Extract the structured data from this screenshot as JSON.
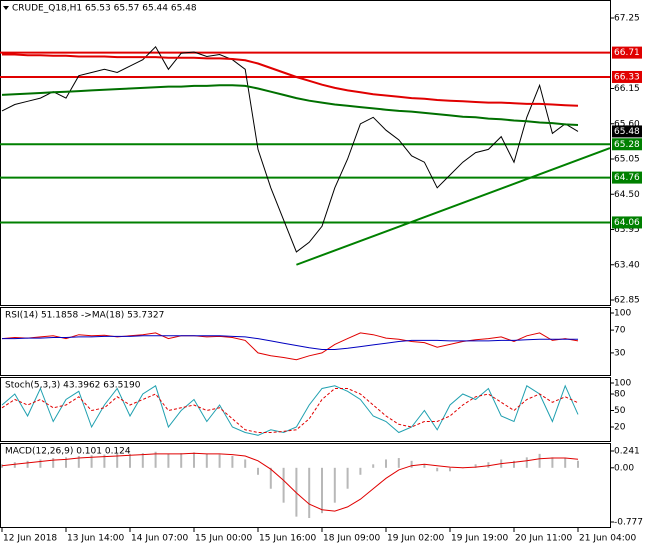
{
  "chart_data": [
    {
      "type": "line",
      "title": "CRUDE_Q18,H1  65.53 65.57 65.44 65.48",
      "ylim": [
        62.85,
        67.25
      ],
      "yticks": [
        67.25,
        66.15,
        {
          "value": 65.6,
          "label": "65.60"
        },
        65.05,
        {
          "value": 64.5,
          "label": "64.50"
        },
        {
          "value": 63.95,
          "label": "63.95"
        },
        {
          "value": 63.4,
          "label": "63.40"
        },
        62.85
      ],
      "series": [
        {
          "color": "#000000",
          "values": [
            65.8,
            65.9,
            65.95,
            66.0,
            66.1,
            66.0,
            66.35,
            66.4,
            66.45,
            66.4,
            66.5,
            66.6,
            66.8,
            66.45,
            66.7,
            66.72,
            66.65,
            66.68,
            66.6,
            66.45,
            65.2,
            64.6,
            64.1,
            63.6,
            63.75,
            64.0,
            64.6,
            65.05,
            65.6,
            65.7,
            65.5,
            65.35,
            65.1,
            65.0,
            64.6,
            64.8,
            65.0,
            65.15,
            65.2,
            65.4,
            65.0,
            65.7,
            66.2,
            65.45,
            65.6,
            65.48
          ]
        },
        {
          "color": "#e00000",
          "values": [
            66.68,
            66.68,
            66.67,
            66.67,
            66.66,
            66.66,
            66.65,
            66.65,
            66.65,
            66.64,
            66.64,
            66.64,
            66.64,
            66.63,
            66.63,
            66.63,
            66.62,
            66.62,
            66.61,
            66.59,
            66.54,
            66.47,
            66.4,
            66.33,
            66.27,
            66.21,
            66.16,
            66.12,
            66.09,
            66.06,
            66.04,
            66.02,
            66.0,
            65.99,
            65.97,
            65.96,
            65.95,
            65.94,
            65.93,
            65.93,
            65.92,
            65.91,
            65.91,
            65.9,
            65.89,
            65.88
          ]
        },
        {
          "color": "#007000",
          "values": [
            66.05,
            66.06,
            66.07,
            66.08,
            66.09,
            66.1,
            66.11,
            66.12,
            66.13,
            66.14,
            66.15,
            66.16,
            66.17,
            66.18,
            66.18,
            66.19,
            66.19,
            66.2,
            66.2,
            66.19,
            66.15,
            66.1,
            66.05,
            66.0,
            65.96,
            65.93,
            65.9,
            65.88,
            65.86,
            65.84,
            65.82,
            65.8,
            65.79,
            65.77,
            65.75,
            65.73,
            65.71,
            65.7,
            65.68,
            65.67,
            65.65,
            65.64,
            65.62,
            65.61,
            65.59,
            65.58
          ]
        }
      ],
      "levels": [
        {
          "value": 66.71,
          "color": "#e00000"
        },
        {
          "value": 66.33,
          "color": "#e00000"
        },
        {
          "value": 65.28,
          "color": "#008000"
        },
        {
          "value": 64.76,
          "color": "#008000"
        },
        {
          "value": 64.06,
          "color": "#008000"
        }
      ],
      "current_price": 65.48,
      "trend_line": {
        "color": "#008000",
        "start": [
          23,
          63.4
        ],
        "end": [
          47.5,
          65.22
        ]
      }
    },
    {
      "type": "line",
      "title": "RSI(14) 51.1858  ->MA(18) 53.7327",
      "ylim": [
        0,
        100
      ],
      "yticks": [
        100,
        70,
        30
      ],
      "series": [
        {
          "color": "#e00000",
          "values": [
            55,
            57,
            56,
            58,
            60,
            55,
            62,
            60,
            61,
            58,
            60,
            62,
            65,
            55,
            60,
            60,
            58,
            59,
            57,
            52,
            30,
            25,
            22,
            18,
            25,
            30,
            45,
            55,
            65,
            62,
            56,
            54,
            50,
            48,
            40,
            45,
            50,
            53,
            55,
            58,
            50,
            60,
            65,
            52,
            55,
            51
          ]
        },
        {
          "color": "#0000c0",
          "values": [
            55,
            55,
            56,
            56,
            57,
            57,
            58,
            58,
            59,
            59,
            59,
            60,
            60,
            60,
            60,
            60,
            60,
            60,
            59,
            58,
            55,
            51,
            47,
            43,
            39,
            36,
            36,
            38,
            41,
            44,
            47,
            50,
            52,
            52,
            52,
            51,
            51,
            51,
            51,
            52,
            52,
            53,
            54,
            54,
            54,
            54
          ]
        }
      ]
    },
    {
      "type": "line",
      "title": "Stoch(5,3,3) 43.3962 63.5190",
      "ylim": [
        0,
        100
      ],
      "yticks": [
        100,
        80,
        50,
        20
      ],
      "series": [
        {
          "color": "#20a0b0",
          "values": [
            60,
            80,
            40,
            90,
            30,
            70,
            85,
            20,
            60,
            90,
            40,
            80,
            95,
            20,
            50,
            70,
            30,
            60,
            20,
            10,
            5,
            15,
            10,
            20,
            60,
            90,
            95,
            85,
            70,
            40,
            30,
            10,
            20,
            50,
            15,
            60,
            80,
            70,
            90,
            40,
            30,
            95,
            80,
            30,
            95,
            43
          ]
        },
        {
          "color": "#e00000",
          "dashed": true,
          "values": [
            55,
            70,
            60,
            70,
            55,
            60,
            75,
            50,
            55,
            75,
            60,
            70,
            80,
            50,
            55,
            60,
            50,
            55,
            35,
            15,
            10,
            10,
            12,
            15,
            35,
            70,
            90,
            90,
            80,
            60,
            40,
            25,
            20,
            30,
            30,
            40,
            60,
            75,
            80,
            65,
            50,
            70,
            80,
            65,
            75,
            64
          ]
        }
      ]
    },
    {
      "type": "bar",
      "title": "MACD(12,26,9) 0.101 0.124",
      "ylim": [
        -0.777,
        0.241
      ],
      "yticks": [
        0.241,
        {
          "value": 0,
          "label": "0.00"
        },
        -0.777
      ],
      "categories": [
        "12 Jun 2018",
        null,
        null,
        null,
        null,
        "13 Jun 14:00",
        null,
        null,
        null,
        null,
        "14 Jun 07:00",
        null,
        null,
        null,
        null,
        "15 Jun 00:00",
        null,
        null,
        null,
        null,
        "15 Jun 16:00",
        null,
        null,
        null,
        null,
        "18 Jun 09:00",
        null,
        null,
        null,
        null,
        "19 Jun 02:00",
        null,
        null,
        null,
        null,
        "19 Jun 19:00",
        null,
        null,
        null,
        null,
        "20 Jun 11:00",
        null,
        null,
        null,
        null,
        "21 Jun 04:00"
      ],
      "color": "#b8b8b8",
      "values": [
        0.05,
        0.08,
        0.1,
        0.12,
        0.14,
        0.15,
        0.17,
        0.18,
        0.19,
        0.2,
        0.2,
        0.21,
        0.23,
        0.2,
        0.21,
        0.22,
        0.2,
        0.19,
        0.17,
        0.12,
        -0.1,
        -0.3,
        -0.5,
        -0.7,
        -0.72,
        -0.65,
        -0.5,
        -0.3,
        -0.1,
        0.05,
        0.12,
        0.14,
        0.1,
        0.05,
        -0.05,
        -0.05,
        0,
        0.05,
        0.08,
        0.12,
        0.1,
        0.15,
        0.2,
        0.15,
        0.14,
        0.101
      ],
      "series": [
        {
          "color": "#e00000",
          "values": [
            0.03,
            0.05,
            0.07,
            0.09,
            0.11,
            0.12,
            0.14,
            0.15,
            0.16,
            0.17,
            0.18,
            0.19,
            0.2,
            0.2,
            0.2,
            0.21,
            0.2,
            0.2,
            0.19,
            0.17,
            0.1,
            -0.02,
            -0.18,
            -0.36,
            -0.52,
            -0.6,
            -0.62,
            -0.56,
            -0.45,
            -0.3,
            -0.15,
            -0.03,
            0.03,
            0.05,
            0.03,
            0.01,
            0,
            0.01,
            0.03,
            0.06,
            0.08,
            0.1,
            0.13,
            0.14,
            0.14,
            0.124
          ]
        }
      ]
    }
  ]
}
